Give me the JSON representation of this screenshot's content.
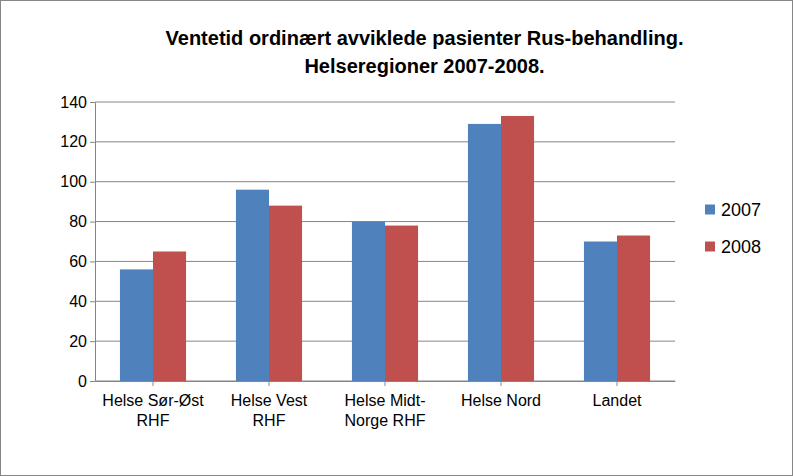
{
  "chart_data": {
    "type": "bar",
    "title": [
      "Ventetid ordinært avviklede pasienter Rus-behandling.",
      "Helseregioner 2007-2008."
    ],
    "categories": [
      "Helse Sør-Øst RHF",
      "Helse Vest RHF",
      "Helse Midt-Norge RHF",
      "Helse Nord",
      "Landet"
    ],
    "series": [
      {
        "name": "2007",
        "color": "#4f81bd",
        "values": [
          56,
          96,
          80,
          129,
          70
        ]
      },
      {
        "name": "2008",
        "color": "#c0504d",
        "values": [
          65,
          88,
          78,
          133,
          73
        ]
      }
    ],
    "ylim": [
      0,
      140
    ],
    "yticks": [
      0,
      20,
      40,
      60,
      80,
      100,
      120,
      140
    ],
    "grid": true,
    "legend": "right"
  }
}
